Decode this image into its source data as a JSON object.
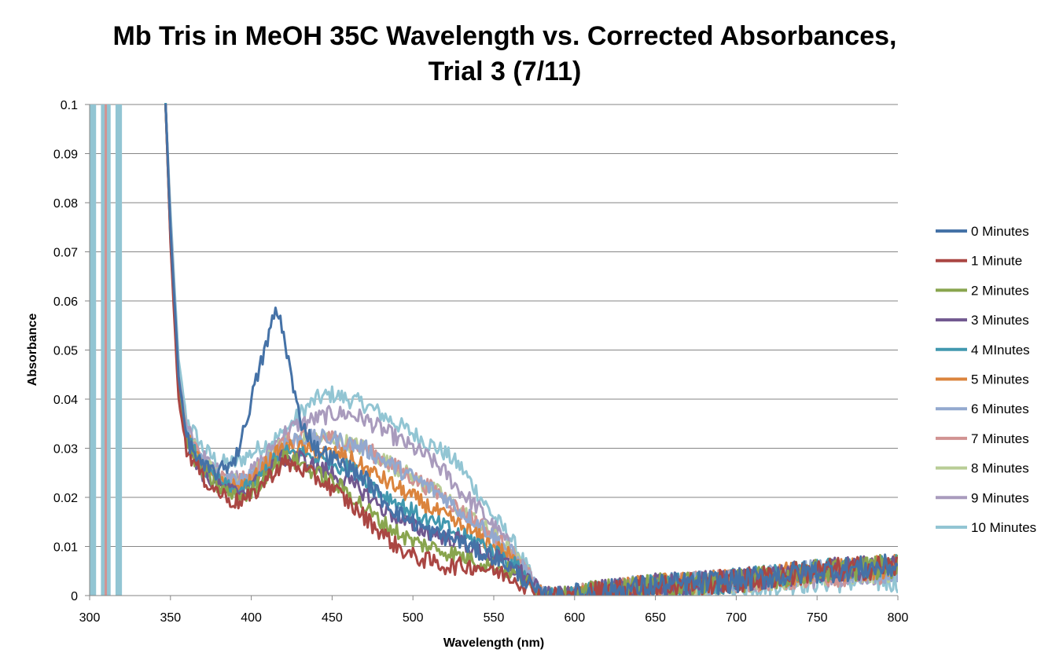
{
  "chart_data": {
    "type": "line",
    "title_lines": [
      "Mb Tris in MeOH 35C Wavelength vs. Corrected Absorbances,",
      "Trial 3 (7/11)"
    ],
    "xlabel": "Wavelength (nm)",
    "ylabel": "Absorbance",
    "xlim": [
      300,
      800
    ],
    "ylim": [
      0,
      0.1
    ],
    "x_ticks": [
      300,
      350,
      400,
      450,
      500,
      550,
      600,
      650,
      700,
      750,
      800
    ],
    "x_tick_labels": [
      "300",
      "350",
      "400",
      "450",
      "500",
      "550",
      "600",
      "650",
      "700",
      "750",
      "800"
    ],
    "y_ticks": [
      0,
      0.01,
      0.02,
      0.03,
      0.04,
      0.05,
      0.06,
      0.07,
      0.08,
      0.09,
      0.1
    ],
    "y_tick_labels": [
      "0",
      "0.01",
      "0.02",
      "0.03",
      "0.04",
      "0.05",
      "0.06",
      "0.07",
      "0.08",
      "0.09",
      "0.1"
    ],
    "grid": "horizontal major gridlines",
    "legend_position": "right",
    "series": [
      {
        "name": "0 Minutes",
        "color": "#4572A7",
        "x": [
          347,
          350,
          355,
          360,
          370,
          380,
          390,
          395,
          400,
          405,
          410,
          415,
          418,
          422,
          426,
          430,
          440,
          450,
          460,
          470,
          480,
          490,
          500,
          510,
          520,
          530,
          540,
          550,
          560,
          570,
          575,
          580,
          600,
          650,
          700,
          750,
          800
        ],
        "y": [
          0.1,
          0.075,
          0.045,
          0.032,
          0.026,
          0.025,
          0.028,
          0.033,
          0.04,
          0.046,
          0.052,
          0.058,
          0.056,
          0.05,
          0.042,
          0.036,
          0.03,
          0.028,
          0.026,
          0.024,
          0.02,
          0.017,
          0.015,
          0.013,
          0.012,
          0.011,
          0.009,
          0.008,
          0.006,
          0.003,
          0.001,
          0.0,
          0.0,
          0.002,
          0.003,
          0.005,
          0.006
        ]
      },
      {
        "name": "1 Minute",
        "color": "#AA4643",
        "x": [
          347,
          350,
          355,
          360,
          370,
          380,
          390,
          400,
          410,
          420,
          430,
          440,
          450,
          460,
          470,
          480,
          490,
          500,
          510,
          520,
          530,
          540,
          550,
          560,
          570,
          575,
          580,
          600,
          650,
          700,
          750,
          800
        ],
        "y": [
          0.1,
          0.072,
          0.04,
          0.03,
          0.024,
          0.021,
          0.019,
          0.02,
          0.024,
          0.027,
          0.026,
          0.024,
          0.022,
          0.019,
          0.016,
          0.013,
          0.01,
          0.008,
          0.007,
          0.006,
          0.006,
          0.006,
          0.005,
          0.004,
          0.002,
          0.001,
          0.0,
          0.0,
          0.002,
          0.003,
          0.005,
          0.006
        ]
      },
      {
        "name": "2 Minutes",
        "color": "#89A54E",
        "x": [
          347,
          350,
          355,
          360,
          370,
          380,
          390,
          400,
          410,
          420,
          430,
          440,
          450,
          460,
          470,
          480,
          490,
          500,
          510,
          520,
          530,
          540,
          550,
          560,
          570,
          575,
          580,
          600,
          650,
          700,
          750,
          800
        ],
        "y": [
          0.1,
          0.073,
          0.041,
          0.031,
          0.025,
          0.022,
          0.02,
          0.021,
          0.025,
          0.028,
          0.027,
          0.025,
          0.023,
          0.021,
          0.018,
          0.015,
          0.013,
          0.011,
          0.01,
          0.009,
          0.008,
          0.007,
          0.006,
          0.005,
          0.003,
          0.001,
          0.0,
          0.0,
          0.002,
          0.003,
          0.005,
          0.006
        ]
      },
      {
        "name": "3 Minutes",
        "color": "#71588F",
        "x": [
          347,
          350,
          355,
          360,
          370,
          380,
          390,
          400,
          410,
          420,
          430,
          440,
          450,
          460,
          470,
          480,
          490,
          500,
          510,
          520,
          530,
          540,
          550,
          560,
          570,
          575,
          580,
          600,
          650,
          700,
          750,
          800
        ],
        "y": [
          0.1,
          0.073,
          0.042,
          0.031,
          0.025,
          0.022,
          0.021,
          0.022,
          0.025,
          0.028,
          0.028,
          0.026,
          0.025,
          0.023,
          0.021,
          0.018,
          0.016,
          0.014,
          0.013,
          0.012,
          0.011,
          0.009,
          0.008,
          0.006,
          0.004,
          0.002,
          0.0,
          0.0,
          0.002,
          0.003,
          0.005,
          0.006
        ]
      },
      {
        "name": "4 MInutes",
        "color": "#4198AF",
        "x": [
          347,
          350,
          355,
          360,
          370,
          380,
          390,
          400,
          410,
          420,
          430,
          440,
          450,
          460,
          470,
          480,
          490,
          500,
          510,
          520,
          530,
          540,
          550,
          560,
          570,
          575,
          580,
          600,
          650,
          700,
          750,
          800
        ],
        "y": [
          0.1,
          0.074,
          0.042,
          0.032,
          0.026,
          0.023,
          0.021,
          0.022,
          0.026,
          0.029,
          0.029,
          0.028,
          0.027,
          0.026,
          0.024,
          0.021,
          0.019,
          0.017,
          0.015,
          0.014,
          0.012,
          0.011,
          0.009,
          0.007,
          0.004,
          0.002,
          0.0,
          0.0,
          0.002,
          0.003,
          0.005,
          0.006
        ]
      },
      {
        "name": "5 Minutes",
        "color": "#DB843D",
        "x": [
          347,
          350,
          355,
          360,
          370,
          380,
          390,
          400,
          410,
          420,
          430,
          440,
          450,
          460,
          470,
          480,
          490,
          500,
          510,
          520,
          530,
          540,
          550,
          560,
          570,
          575,
          580,
          600,
          650,
          700,
          750,
          800
        ],
        "y": [
          0.1,
          0.074,
          0.043,
          0.032,
          0.026,
          0.023,
          0.022,
          0.023,
          0.027,
          0.03,
          0.03,
          0.029,
          0.029,
          0.028,
          0.026,
          0.024,
          0.022,
          0.02,
          0.018,
          0.016,
          0.014,
          0.012,
          0.01,
          0.008,
          0.004,
          0.002,
          0.0,
          0.0,
          0.002,
          0.003,
          0.005,
          0.006
        ]
      },
      {
        "name": "6 Minutes",
        "color": "#93A9CF",
        "x": [
          347,
          350,
          355,
          360,
          370,
          380,
          390,
          400,
          410,
          420,
          430,
          440,
          450,
          460,
          470,
          480,
          490,
          500,
          510,
          520,
          530,
          540,
          550,
          560,
          570,
          575,
          580,
          600,
          650,
          700,
          750,
          800
        ],
        "y": [
          0.1,
          0.075,
          0.044,
          0.033,
          0.027,
          0.024,
          0.023,
          0.024,
          0.028,
          0.031,
          0.032,
          0.032,
          0.032,
          0.031,
          0.03,
          0.028,
          0.026,
          0.024,
          0.022,
          0.02,
          0.017,
          0.015,
          0.012,
          0.009,
          0.005,
          0.002,
          0.0,
          0.0,
          0.002,
          0.003,
          0.005,
          0.005
        ]
      },
      {
        "name": "7 Minutes",
        "color": "#D19392",
        "x": [
          347,
          350,
          355,
          360,
          370,
          380,
          390,
          400,
          410,
          420,
          430,
          440,
          450,
          460,
          470,
          480,
          490,
          500,
          510,
          520,
          530,
          540,
          550,
          560,
          570,
          575,
          580,
          600,
          650,
          700,
          750,
          800
        ],
        "y": [
          0.1,
          0.075,
          0.044,
          0.033,
          0.027,
          0.024,
          0.023,
          0.024,
          0.028,
          0.031,
          0.032,
          0.032,
          0.032,
          0.031,
          0.03,
          0.028,
          0.026,
          0.024,
          0.022,
          0.02,
          0.017,
          0.015,
          0.012,
          0.009,
          0.005,
          0.002,
          0.0,
          0.0,
          0.002,
          0.003,
          0.004,
          0.005
        ]
      },
      {
        "name": "8 Minutes",
        "color": "#B9CD96",
        "x": [
          347,
          350,
          355,
          360,
          370,
          380,
          390,
          400,
          410,
          420,
          430,
          440,
          450,
          460,
          470,
          480,
          490,
          500,
          510,
          520,
          530,
          540,
          550,
          560,
          570,
          575,
          580,
          600,
          650,
          700,
          750,
          800
        ],
        "y": [
          0.1,
          0.075,
          0.044,
          0.033,
          0.027,
          0.024,
          0.023,
          0.024,
          0.028,
          0.031,
          0.032,
          0.032,
          0.032,
          0.031,
          0.03,
          0.028,
          0.026,
          0.024,
          0.022,
          0.02,
          0.017,
          0.015,
          0.012,
          0.009,
          0.005,
          0.002,
          0.0,
          0.0,
          0.002,
          0.003,
          0.004,
          0.005
        ]
      },
      {
        "name": "9 Minutes",
        "color": "#A99BBD",
        "x": [
          347,
          350,
          355,
          360,
          370,
          380,
          390,
          400,
          410,
          420,
          430,
          440,
          450,
          460,
          470,
          480,
          490,
          500,
          510,
          520,
          530,
          540,
          550,
          560,
          570,
          575,
          580,
          600,
          650,
          700,
          750,
          800
        ],
        "y": [
          0.1,
          0.076,
          0.045,
          0.034,
          0.028,
          0.025,
          0.024,
          0.025,
          0.029,
          0.033,
          0.035,
          0.036,
          0.037,
          0.037,
          0.036,
          0.034,
          0.032,
          0.03,
          0.028,
          0.025,
          0.021,
          0.018,
          0.014,
          0.01,
          0.005,
          0.002,
          0.0,
          0.0,
          0.002,
          0.003,
          0.004,
          0.005
        ]
      },
      {
        "name": "10 Minutes",
        "color": "#92C5D3",
        "x": [
          347,
          350,
          355,
          360,
          370,
          380,
          390,
          400,
          410,
          420,
          430,
          440,
          450,
          460,
          470,
          480,
          490,
          500,
          510,
          520,
          530,
          540,
          550,
          560,
          570,
          575,
          580,
          600,
          650,
          700,
          750,
          800
        ],
        "y": [
          0.1,
          0.078,
          0.048,
          0.036,
          0.03,
          0.027,
          0.027,
          0.029,
          0.031,
          0.033,
          0.037,
          0.04,
          0.041,
          0.04,
          0.039,
          0.037,
          0.035,
          0.033,
          0.031,
          0.029,
          0.026,
          0.021,
          0.016,
          0.012,
          0.006,
          0.002,
          0.0,
          0.0,
          0.001,
          0.002,
          0.003,
          0.003
        ]
      }
    ]
  }
}
